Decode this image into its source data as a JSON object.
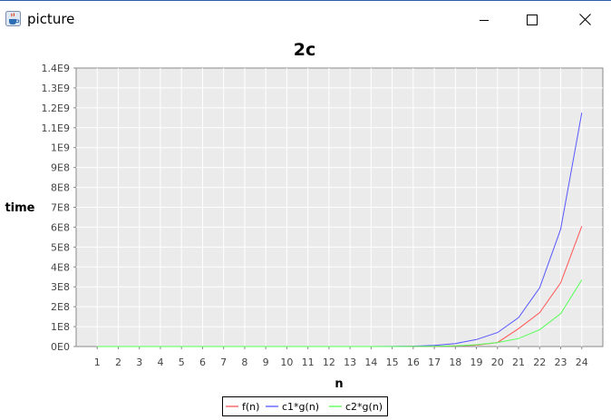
{
  "window": {
    "title": "picture",
    "icon": "java-coffee-cup-icon",
    "controls": [
      "minimize-icon",
      "maximize-icon",
      "close-icon"
    ]
  },
  "chart_data": {
    "type": "line",
    "title": "2c",
    "xlabel": "n",
    "ylabel": "time",
    "x": [
      1,
      2,
      3,
      4,
      5,
      6,
      7,
      8,
      9,
      10,
      11,
      12,
      13,
      14,
      15,
      16,
      17,
      18,
      19,
      20,
      21,
      22,
      23,
      24
    ],
    "xticks": [
      "1",
      "2",
      "3",
      "4",
      "5",
      "6",
      "7",
      "8",
      "9",
      "10",
      "11",
      "12",
      "13",
      "14",
      "15",
      "16",
      "17",
      "18",
      "19",
      "20",
      "21",
      "22",
      "23",
      "24"
    ],
    "xlim": [
      0,
      25
    ],
    "ylim": [
      0,
      1400000000
    ],
    "yticks": [
      {
        "value": 0,
        "label": "0E0"
      },
      {
        "value": 100000000,
        "label": "1E8"
      },
      {
        "value": 200000000,
        "label": "2E8"
      },
      {
        "value": 300000000,
        "label": "3E8"
      },
      {
        "value": 400000000,
        "label": "4E8"
      },
      {
        "value": 500000000,
        "label": "5E8"
      },
      {
        "value": 600000000,
        "label": "6E8"
      },
      {
        "value": 700000000,
        "label": "7E8"
      },
      {
        "value": 800000000,
        "label": "8E8"
      },
      {
        "value": 900000000,
        "label": "9E8"
      },
      {
        "value": 1000000000,
        "label": "1E9"
      },
      {
        "value": 1100000000,
        "label": "1.1E9"
      },
      {
        "value": 1200000000,
        "label": "1.2E9"
      },
      {
        "value": 1300000000,
        "label": "1.3E9"
      },
      {
        "value": 1400000000,
        "label": "1.4E9"
      }
    ],
    "grid": true,
    "legend_position": "bottom",
    "series": [
      {
        "name": "f(n)",
        "color": "#ff5555",
        "values": [
          0,
          0,
          0,
          0,
          0,
          0,
          0,
          0,
          0,
          0,
          0,
          0,
          0,
          0,
          0,
          500000,
          1000000,
          3000000,
          7000000,
          20000000,
          90000000,
          170000000,
          320000000,
          605000000
        ]
      },
      {
        "name": "c1*g(n)",
        "color": "#5555ff",
        "values": [
          0,
          0,
          0,
          0,
          0,
          0,
          0,
          0,
          0,
          0,
          0,
          0,
          0,
          0,
          500000,
          2000000,
          6000000,
          15000000,
          35000000,
          70000000,
          145000000,
          295000000,
          590000000,
          1175000000
        ]
      },
      {
        "name": "c2*g(n)",
        "color": "#55ff55",
        "values": [
          0,
          0,
          0,
          0,
          0,
          0,
          0,
          0,
          0,
          0,
          0,
          0,
          0,
          0,
          0,
          500000,
          1000000,
          3000000,
          9000000,
          20000000,
          40000000,
          85000000,
          165000000,
          335000000
        ]
      }
    ],
    "plot_background": "#ebebeb",
    "gridline_color": "#ffffff"
  }
}
